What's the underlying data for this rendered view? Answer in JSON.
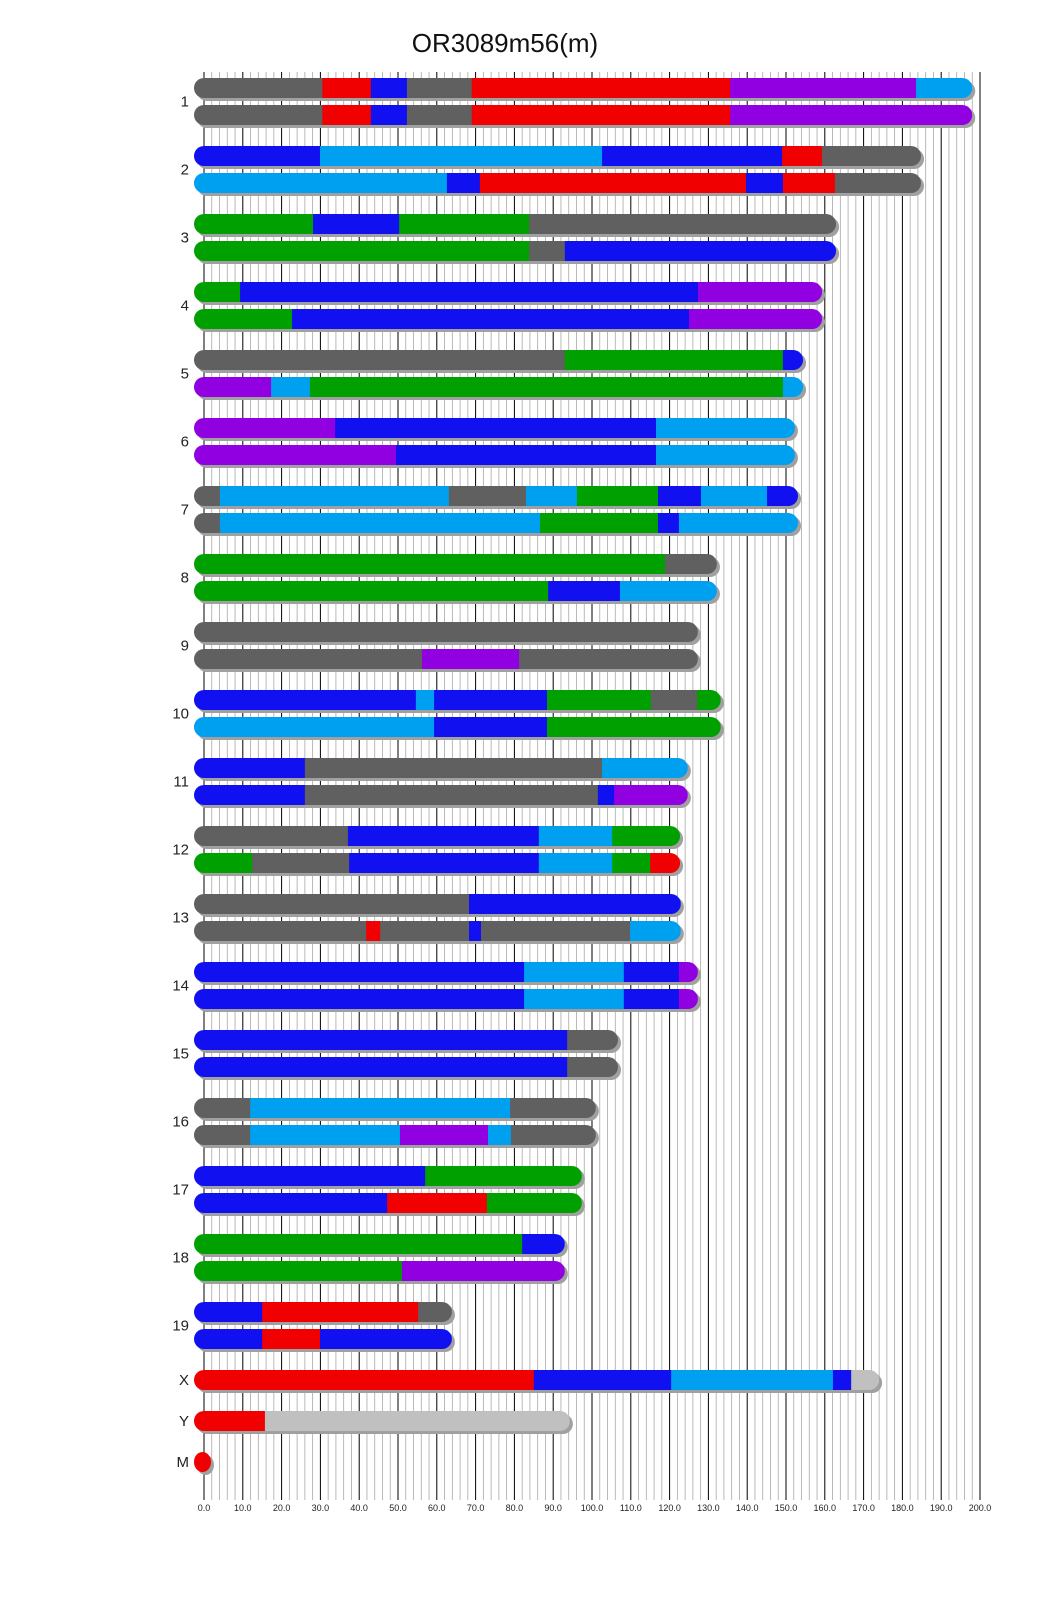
{
  "chart_data": {
    "type": "bar",
    "subtype": "chromosome-haplotype-painting",
    "title": "OR3089m56(m)",
    "xlabel": "",
    "ylabel": "",
    "xlim": [
      0,
      200
    ],
    "grid": true,
    "x_ticks": [
      "0.0",
      "10.0",
      "20.0",
      "30.0",
      "40.0",
      "50.0",
      "60.0",
      "70.0",
      "80.0",
      "90.0",
      "100.0",
      "110.0",
      "120.0",
      "130.0",
      "140.0",
      "150.0",
      "160.0",
      "170.0",
      "180.0",
      "190.0",
      "200.0"
    ],
    "colors": {
      "gray": "#606060",
      "red": "#f00000",
      "blue": "#1010f0",
      "lightblue": "#00a0f0",
      "green": "#00a000",
      "purple": "#9000e0",
      "lightgray": "#c0c0c0"
    },
    "chromosomes": [
      {
        "name": "1",
        "haplotypes": [
          [
            [
              0,
              30.5,
              "gray"
            ],
            [
              30.5,
              43,
              "red"
            ],
            [
              43,
              52.3,
              "blue"
            ],
            [
              52.3,
              69,
              "gray"
            ],
            [
              69,
              135.6,
              "red"
            ],
            [
              135.6,
              183.5,
              "purple"
            ],
            [
              183.5,
              198,
              "lightblue"
            ]
          ],
          [
            [
              0,
              30.5,
              "gray"
            ],
            [
              30.5,
              43,
              "red"
            ],
            [
              43,
              52.3,
              "blue"
            ],
            [
              52.3,
              69,
              "gray"
            ],
            [
              69,
              135.6,
              "red"
            ],
            [
              135.6,
              198,
              "purple"
            ]
          ]
        ]
      },
      {
        "name": "2",
        "haplotypes": [
          [
            [
              0,
              29.9,
              "blue"
            ],
            [
              29.9,
              102.6,
              "lightblue"
            ],
            [
              102.6,
              149,
              "blue"
            ],
            [
              149,
              159.3,
              "red"
            ],
            [
              159.3,
              184.8,
              "gray"
            ]
          ],
          [
            [
              0,
              62.6,
              "lightblue"
            ],
            [
              62.6,
              71.1,
              "blue"
            ],
            [
              71.1,
              139.7,
              "red"
            ],
            [
              139.7,
              149.2,
              "blue"
            ],
            [
              149.2,
              162.6,
              "red"
            ],
            [
              162.6,
              184.8,
              "gray"
            ]
          ]
        ]
      },
      {
        "name": "3",
        "haplotypes": [
          [
            [
              0,
              28.1,
              "green"
            ],
            [
              28.1,
              50.3,
              "blue"
            ],
            [
              50.3,
              83.8,
              "green"
            ],
            [
              83.8,
              162.9,
              "gray"
            ]
          ],
          [
            [
              0,
              83.8,
              "green"
            ],
            [
              83.8,
              93,
              "gray"
            ],
            [
              93,
              162.9,
              "blue"
            ]
          ]
        ]
      },
      {
        "name": "4",
        "haplotypes": [
          [
            [
              0,
              9.3,
              "green"
            ],
            [
              9.3,
              127.3,
              "blue"
            ],
            [
              127.3,
              159.3,
              "purple"
            ]
          ],
          [
            [
              0,
              22.7,
              "green"
            ],
            [
              22.7,
              125,
              "blue"
            ],
            [
              125,
              159.3,
              "purple"
            ]
          ]
        ]
      },
      {
        "name": "5",
        "haplotypes": [
          [
            [
              0,
              93,
              "gray"
            ],
            [
              93,
              149.2,
              "green"
            ],
            [
              149.2,
              154.4,
              "blue"
            ]
          ],
          [
            [
              0,
              17.3,
              "purple"
            ],
            [
              17.3,
              27.3,
              "lightblue"
            ],
            [
              27.3,
              149.2,
              "green"
            ],
            [
              149.2,
              154.4,
              "lightblue"
            ]
          ]
        ]
      },
      {
        "name": "6",
        "haplotypes": [
          [
            [
              0,
              33.8,
              "purple"
            ],
            [
              33.8,
              116.5,
              "blue"
            ],
            [
              116.5,
              152.3,
              "lightblue"
            ]
          ],
          [
            [
              0,
              49.5,
              "purple"
            ],
            [
              49.5,
              116.5,
              "blue"
            ],
            [
              116.5,
              152.3,
              "lightblue"
            ]
          ]
        ]
      },
      {
        "name": "7",
        "haplotypes": [
          [
            [
              0,
              4.1,
              "gray"
            ],
            [
              4.1,
              63.1,
              "lightblue"
            ],
            [
              63.1,
              83,
              "gray"
            ],
            [
              83,
              96.1,
              "lightblue"
            ],
            [
              96.1,
              117,
              "green"
            ],
            [
              117,
              128.1,
              "blue"
            ],
            [
              128.1,
              145.1,
              "lightblue"
            ],
            [
              145.1,
              153.1,
              "blue"
            ]
          ],
          [
            [
              0,
              4.1,
              "gray"
            ],
            [
              4.1,
              86.6,
              "lightblue"
            ],
            [
              86.6,
              117,
              "green"
            ],
            [
              117,
              122.4,
              "blue"
            ],
            [
              122.4,
              153.1,
              "lightblue"
            ]
          ]
        ]
      },
      {
        "name": "8",
        "haplotypes": [
          [
            [
              0,
              118.8,
              "green"
            ],
            [
              118.8,
              132.2,
              "gray"
            ]
          ],
          [
            [
              0,
              88.7,
              "green"
            ],
            [
              88.7,
              107.2,
              "blue"
            ],
            [
              107.2,
              132.2,
              "lightblue"
            ]
          ]
        ]
      },
      {
        "name": "9",
        "haplotypes": [
          [
            [
              0,
              127.3,
              "gray"
            ]
          ],
          [
            [
              0,
              56.2,
              "gray"
            ],
            [
              56.2,
              81.2,
              "purple"
            ],
            [
              81.2,
              127.3,
              "gray"
            ]
          ]
        ]
      },
      {
        "name": "10",
        "haplotypes": [
          [
            [
              0,
              54.6,
              "blue"
            ],
            [
              54.6,
              59.3,
              "lightblue"
            ],
            [
              59.3,
              88.4,
              "blue"
            ],
            [
              88.4,
              115.2,
              "green"
            ],
            [
              115.2,
              127.1,
              "gray"
            ],
            [
              127.1,
              133.2,
              "green"
            ]
          ],
          [
            [
              0,
              59.3,
              "lightblue"
            ],
            [
              59.3,
              88.4,
              "blue"
            ],
            [
              88.4,
              133.2,
              "green"
            ]
          ]
        ]
      },
      {
        "name": "11",
        "haplotypes": [
          [
            [
              0,
              26,
              "blue"
            ],
            [
              26,
              102.6,
              "gray"
            ],
            [
              102.6,
              124.7,
              "lightblue"
            ]
          ],
          [
            [
              0,
              26,
              "blue"
            ],
            [
              26,
              101.5,
              "gray"
            ],
            [
              101.5,
              105.7,
              "blue"
            ],
            [
              105.7,
              124.7,
              "purple"
            ]
          ]
        ]
      },
      {
        "name": "12",
        "haplotypes": [
          [
            [
              0,
              37.1,
              "gray"
            ],
            [
              37.1,
              86.3,
              "blue"
            ],
            [
              86.3,
              105.2,
              "lightblue"
            ],
            [
              105.2,
              122.7,
              "green"
            ]
          ],
          [
            [
              0,
              12.4,
              "green"
            ],
            [
              12.4,
              37.4,
              "gray"
            ],
            [
              37.4,
              86.3,
              "blue"
            ],
            [
              86.3,
              105.2,
              "lightblue"
            ],
            [
              105.2,
              115,
              "green"
            ],
            [
              115,
              122.7,
              "red"
            ]
          ]
        ]
      },
      {
        "name": "13",
        "haplotypes": [
          [
            [
              0,
              68.3,
              "gray"
            ],
            [
              68.3,
              122.9,
              "blue"
            ]
          ],
          [
            [
              0,
              41.8,
              "gray"
            ],
            [
              41.8,
              45.4,
              "red"
            ],
            [
              45.4,
              68.3,
              "gray"
            ],
            [
              68.3,
              71.4,
              "blue"
            ],
            [
              71.4,
              109.8,
              "gray"
            ],
            [
              109.8,
              122.9,
              "lightblue"
            ]
          ]
        ]
      },
      {
        "name": "14",
        "haplotypes": [
          [
            [
              0,
              82.5,
              "blue"
            ],
            [
              82.5,
              108.2,
              "lightblue"
            ],
            [
              108.2,
              122.4,
              "blue"
            ],
            [
              122.4,
              127.3,
              "purple"
            ]
          ],
          [
            [
              0,
              82.5,
              "blue"
            ],
            [
              82.5,
              108.2,
              "lightblue"
            ],
            [
              108.2,
              122.4,
              "blue"
            ],
            [
              122.4,
              127.3,
              "purple"
            ]
          ]
        ]
      },
      {
        "name": "15",
        "haplotypes": [
          [
            [
              0,
              93.6,
              "blue"
            ],
            [
              93.6,
              106.7,
              "gray"
            ]
          ],
          [
            [
              0,
              93.6,
              "blue"
            ],
            [
              93.6,
              106.7,
              "gray"
            ]
          ]
        ]
      },
      {
        "name": "16",
        "haplotypes": [
          [
            [
              0,
              11.9,
              "gray"
            ],
            [
              11.9,
              78.9,
              "lightblue"
            ],
            [
              78.9,
              101,
              "gray"
            ]
          ],
          [
            [
              0,
              11.9,
              "gray"
            ],
            [
              11.9,
              50.5,
              "lightblue"
            ],
            [
              50.5,
              73.2,
              "purple"
            ],
            [
              73.2,
              79.1,
              "lightblue"
            ],
            [
              79.1,
              101,
              "gray"
            ]
          ]
        ]
      },
      {
        "name": "17",
        "haplotypes": [
          [
            [
              0,
              57,
              "blue"
            ],
            [
              57,
              97.4,
              "green"
            ]
          ],
          [
            [
              0,
              47.2,
              "blue"
            ],
            [
              47.2,
              72.9,
              "red"
            ],
            [
              72.9,
              97.4,
              "green"
            ]
          ]
        ]
      },
      {
        "name": "18",
        "haplotypes": [
          [
            [
              0,
              82,
              "green"
            ],
            [
              82,
              93,
              "blue"
            ]
          ],
          [
            [
              0,
              51,
              "green"
            ],
            [
              51,
              93,
              "purple"
            ]
          ]
        ]
      },
      {
        "name": "19",
        "haplotypes": [
          [
            [
              0,
              15,
              "blue"
            ],
            [
              15,
              55.2,
              "red"
            ],
            [
              55.2,
              63.9,
              "gray"
            ]
          ],
          [
            [
              0,
              15,
              "blue"
            ],
            [
              15,
              29.9,
              "red"
            ],
            [
              29.9,
              63.9,
              "blue"
            ]
          ]
        ]
      },
      {
        "name": "X",
        "haplotypes": [
          [
            [
              0,
              85,
              "red"
            ],
            [
              85,
              120.4,
              "blue"
            ],
            [
              120.4,
              162.1,
              "lightblue"
            ],
            [
              162.1,
              166.8,
              "blue"
            ],
            [
              166.8,
              174,
              "lightgray"
            ]
          ]
        ]
      },
      {
        "name": "Y",
        "haplotypes": [
          [
            [
              0,
              15.7,
              "red"
            ],
            [
              15.7,
              94.3,
              "lightgray"
            ]
          ]
        ]
      },
      {
        "name": "M",
        "haplotypes": [
          [
            [
              0,
              4,
              "red"
            ]
          ]
        ]
      }
    ]
  }
}
